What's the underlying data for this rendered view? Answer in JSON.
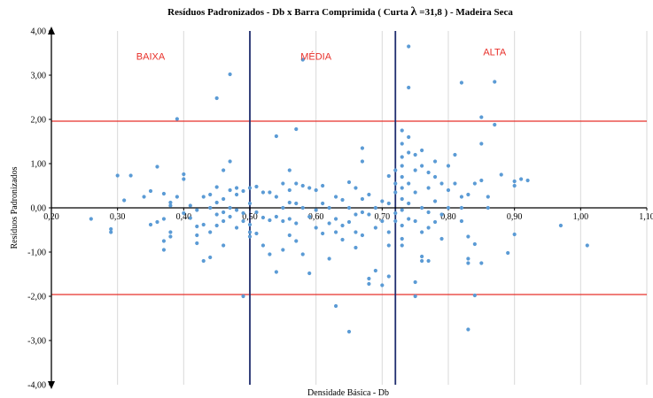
{
  "chart_data": {
    "type": "scatter",
    "title_prefix": "Resíduos Padronizados - Db x Barra Comprimida ( Curta ",
    "title_symbol": "λ",
    "title_suffix": " =31,8 ) - Madeira Seca",
    "xlabel": "Densidade Básica - Db",
    "ylabel": "Resíduos Padronizados",
    "xlim": [
      0.2,
      1.1
    ],
    "ylim": [
      -4,
      4
    ],
    "x_ticks": [
      "0,20",
      "0,30",
      "0,40",
      "0,50",
      "0,60",
      "0,70",
      "0,80",
      "0,90",
      "1,00",
      "1,10"
    ],
    "y_ticks": [
      "4,00",
      "3,00",
      "2,00",
      "1,00",
      "0,00",
      "-1,00",
      "-2,00",
      "-3,00",
      "-4,00"
    ],
    "grid": "vertical",
    "reference_lines_y": [
      1.96,
      -1.96
    ],
    "reference_line_color": "#e8302a",
    "region_lines_x": [
      0.5,
      0.72
    ],
    "region_line_color": "#1f2d6e",
    "point_color": "#5b9bd5",
    "regions": [
      {
        "label": "BAIXA",
        "x": 0.35,
        "y": 3.35
      },
      {
        "label": "MÉDIA",
        "x": 0.6,
        "y": 3.35
      },
      {
        "label": "ALTA",
        "x": 0.87,
        "y": 3.45
      }
    ],
    "points": [
      [
        0.26,
        -0.25
      ],
      [
        0.29,
        -0.48
      ],
      [
        0.29,
        -0.55
      ],
      [
        0.3,
        0.73
      ],
      [
        0.31,
        0.17
      ],
      [
        0.32,
        0.73
      ],
      [
        0.34,
        0.25
      ],
      [
        0.35,
        0.38
      ],
      [
        0.35,
        -0.38
      ],
      [
        0.36,
        0.93
      ],
      [
        0.36,
        -0.32
      ],
      [
        0.37,
        0.32
      ],
      [
        0.37,
        -0.25
      ],
      [
        0.37,
        -0.75
      ],
      [
        0.37,
        -0.95
      ],
      [
        0.38,
        0.05
      ],
      [
        0.38,
        -0.55
      ],
      [
        0.38,
        -0.65
      ],
      [
        0.38,
        0.12
      ],
      [
        0.39,
        2.01
      ],
      [
        0.39,
        0.25
      ],
      [
        0.4,
        0.76
      ],
      [
        0.4,
        0.65
      ],
      [
        0.4,
        -0.12
      ],
      [
        0.41,
        0.05
      ],
      [
        0.41,
        -0.23
      ],
      [
        0.42,
        -0.05
      ],
      [
        0.42,
        -0.42
      ],
      [
        0.42,
        -0.62
      ],
      [
        0.42,
        -0.8
      ],
      [
        0.43,
        0.25
      ],
      [
        0.43,
        -0.38
      ],
      [
        0.43,
        -1.2
      ],
      [
        0.44,
        0.3
      ],
      [
        0.44,
        -0.55
      ],
      [
        0.44,
        -1.12
      ],
      [
        0.44,
        0.0
      ],
      [
        0.45,
        2.48
      ],
      [
        0.45,
        0.47
      ],
      [
        0.45,
        0.12
      ],
      [
        0.45,
        -0.15
      ],
      [
        0.45,
        -0.4
      ],
      [
        0.46,
        0.85
      ],
      [
        0.46,
        0.2
      ],
      [
        0.46,
        -0.1
      ],
      [
        0.46,
        -0.3
      ],
      [
        0.46,
        -0.85
      ],
      [
        0.47,
        3.02
      ],
      [
        0.47,
        1.05
      ],
      [
        0.47,
        0.4
      ],
      [
        0.47,
        0.0
      ],
      [
        0.47,
        -0.2
      ],
      [
        0.48,
        0.45
      ],
      [
        0.48,
        0.3
      ],
      [
        0.48,
        -0.05
      ],
      [
        0.48,
        -0.45
      ],
      [
        0.49,
        -2.0
      ],
      [
        0.49,
        0.38
      ],
      [
        0.49,
        -0.12
      ],
      [
        0.49,
        -0.3
      ],
      [
        0.5,
        0.45
      ],
      [
        0.5,
        0.1
      ],
      [
        0.5,
        -0.38
      ],
      [
        0.5,
        -0.55
      ],
      [
        0.5,
        -0.65
      ],
      [
        0.51,
        0.48
      ],
      [
        0.51,
        -0.1
      ],
      [
        0.51,
        -0.58
      ],
      [
        0.52,
        0.35
      ],
      [
        0.52,
        -0.22
      ],
      [
        0.52,
        -0.85
      ],
      [
        0.53,
        0.35
      ],
      [
        0.53,
        -0.28
      ],
      [
        0.53,
        -1.05
      ],
      [
        0.54,
        1.62
      ],
      [
        0.54,
        0.25
      ],
      [
        0.54,
        -0.2
      ],
      [
        0.54,
        -1.45
      ],
      [
        0.55,
        0.55
      ],
      [
        0.55,
        0.0
      ],
      [
        0.55,
        -0.3
      ],
      [
        0.55,
        -0.95
      ],
      [
        0.56,
        0.85
      ],
      [
        0.56,
        0.4
      ],
      [
        0.56,
        0.12
      ],
      [
        0.56,
        -0.25
      ],
      [
        0.56,
        -0.62
      ],
      [
        0.57,
        1.78
      ],
      [
        0.57,
        0.55
      ],
      [
        0.57,
        0.1
      ],
      [
        0.57,
        -0.35
      ],
      [
        0.57,
        -0.75
      ],
      [
        0.58,
        3.35
      ],
      [
        0.58,
        0.5
      ],
      [
        0.58,
        0.0
      ],
      [
        0.58,
        -1.05
      ],
      [
        0.59,
        0.45
      ],
      [
        0.59,
        -0.2
      ],
      [
        0.59,
        -1.48
      ],
      [
        0.6,
        0.4
      ],
      [
        0.6,
        -0.05
      ],
      [
        0.6,
        -0.45
      ],
      [
        0.61,
        0.5
      ],
      [
        0.61,
        0.1
      ],
      [
        0.61,
        -0.58
      ],
      [
        0.62,
        0.0
      ],
      [
        0.62,
        -0.35
      ],
      [
        0.62,
        -1.15
      ],
      [
        0.63,
        0.25
      ],
      [
        0.63,
        -0.25
      ],
      [
        0.63,
        -0.55
      ],
      [
        0.63,
        -2.22
      ],
      [
        0.64,
        0.18
      ],
      [
        0.64,
        -0.4
      ],
      [
        0.64,
        -0.72
      ],
      [
        0.65,
        0.58
      ],
      [
        0.65,
        0.0
      ],
      [
        0.65,
        -0.32
      ],
      [
        0.65,
        -2.8
      ],
      [
        0.66,
        0.45
      ],
      [
        0.66,
        -0.15
      ],
      [
        0.66,
        -0.55
      ],
      [
        0.66,
        -0.9
      ],
      [
        0.67,
        1.35
      ],
      [
        0.67,
        1.05
      ],
      [
        0.67,
        0.2
      ],
      [
        0.67,
        -0.1
      ],
      [
        0.67,
        -0.62
      ],
      [
        0.68,
        0.3
      ],
      [
        0.68,
        -0.15
      ],
      [
        0.68,
        -1.6
      ],
      [
        0.68,
        -1.72
      ],
      [
        0.69,
        0.0
      ],
      [
        0.69,
        -0.45
      ],
      [
        0.69,
        -1.42
      ],
      [
        0.7,
        0.15
      ],
      [
        0.7,
        -0.3
      ],
      [
        0.7,
        -1.75
      ],
      [
        0.71,
        0.72
      ],
      [
        0.71,
        0.1
      ],
      [
        0.71,
        -0.55
      ],
      [
        0.71,
        -0.85
      ],
      [
        0.71,
        -1.55
      ],
      [
        0.72,
        0.85
      ],
      [
        0.72,
        0.55
      ],
      [
        0.72,
        0.35
      ],
      [
        0.72,
        -0.12
      ],
      [
        0.72,
        -0.3
      ],
      [
        0.73,
        1.75
      ],
      [
        0.73,
        1.45
      ],
      [
        0.73,
        1.15
      ],
      [
        0.73,
        0.95
      ],
      [
        0.73,
        0.7
      ],
      [
        0.73,
        0.45
      ],
      [
        0.73,
        0.2
      ],
      [
        0.73,
        -0.05
      ],
      [
        0.73,
        -0.4
      ],
      [
        0.73,
        -0.7
      ],
      [
        0.73,
        -0.85
      ],
      [
        0.74,
        3.65
      ],
      [
        0.74,
        2.72
      ],
      [
        0.74,
        1.6
      ],
      [
        0.74,
        1.25
      ],
      [
        0.74,
        0.55
      ],
      [
        0.74,
        0.1
      ],
      [
        0.74,
        -0.25
      ],
      [
        0.75,
        1.2
      ],
      [
        0.75,
        0.85
      ],
      [
        0.75,
        0.35
      ],
      [
        0.75,
        -0.3
      ],
      [
        0.75,
        -1.68
      ],
      [
        0.75,
        -2.0
      ],
      [
        0.76,
        1.3
      ],
      [
        0.76,
        0.95
      ],
      [
        0.76,
        0.0
      ],
      [
        0.76,
        -0.55
      ],
      [
        0.76,
        -1.1
      ],
      [
        0.76,
        -1.2
      ],
      [
        0.77,
        0.8
      ],
      [
        0.77,
        0.45
      ],
      [
        0.77,
        -0.1
      ],
      [
        0.77,
        -0.45
      ],
      [
        0.77,
        -1.2
      ],
      [
        0.78,
        1.05
      ],
      [
        0.78,
        0.7
      ],
      [
        0.78,
        0.15
      ],
      [
        0.78,
        -0.32
      ],
      [
        0.79,
        0.55
      ],
      [
        0.79,
        -0.15
      ],
      [
        0.79,
        -0.7
      ],
      [
        0.8,
        0.95
      ],
      [
        0.8,
        0.4
      ],
      [
        0.8,
        0.0
      ],
      [
        0.81,
        0.55
      ],
      [
        0.81,
        1.2
      ],
      [
        0.82,
        2.83
      ],
      [
        0.82,
        0.25
      ],
      [
        0.82,
        0.0
      ],
      [
        0.82,
        -0.3
      ],
      [
        0.83,
        0.3
      ],
      [
        0.83,
        -0.65
      ],
      [
        0.83,
        -1.15
      ],
      [
        0.83,
        -1.25
      ],
      [
        0.83,
        -2.75
      ],
      [
        0.84,
        0.55
      ],
      [
        0.84,
        -0.82
      ],
      [
        0.84,
        -1.98
      ],
      [
        0.85,
        2.05
      ],
      [
        0.85,
        1.45
      ],
      [
        0.85,
        0.62
      ],
      [
        0.85,
        -1.25
      ],
      [
        0.86,
        0.25
      ],
      [
        0.86,
        0.0
      ],
      [
        0.87,
        2.85
      ],
      [
        0.87,
        1.88
      ],
      [
        0.88,
        0.75
      ],
      [
        0.89,
        -1.02
      ],
      [
        0.9,
        0.6
      ],
      [
        0.9,
        0.5
      ],
      [
        0.9,
        -0.6
      ],
      [
        0.91,
        0.65
      ],
      [
        0.92,
        0.62
      ],
      [
        0.97,
        -0.4
      ],
      [
        1.01,
        -0.85
      ]
    ]
  }
}
